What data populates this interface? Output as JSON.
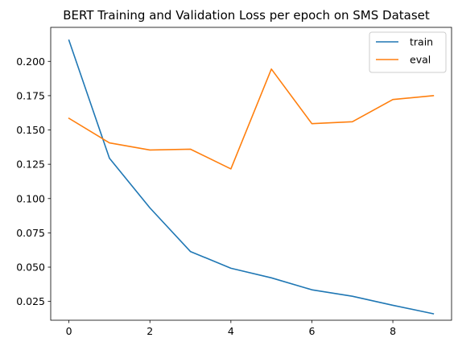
{
  "chart_data": {
    "type": "line",
    "title": "BERT Training and Validation Loss per epoch on SMS Dataset",
    "xlabel": "",
    "ylabel": "",
    "x": [
      0,
      1,
      2,
      3,
      4,
      5,
      6,
      7,
      8,
      9
    ],
    "xlim": [
      -0.45,
      9.45
    ],
    "ylim": [
      0.0113,
      0.2248
    ],
    "xticks": [
      0,
      2,
      4,
      6,
      8
    ],
    "xtick_labels": [
      "0",
      "2",
      "4",
      "6",
      "8"
    ],
    "yticks": [
      0.025,
      0.05,
      0.075,
      0.1,
      0.125,
      0.15,
      0.175,
      0.2
    ],
    "ytick_labels": [
      "0.025",
      "0.050",
      "0.075",
      "0.100",
      "0.125",
      "0.150",
      "0.175",
      "0.200"
    ],
    "grid": false,
    "legend_position": "top-right",
    "series": [
      {
        "name": "train",
        "color": "#1f77b4",
        "values": [
          0.2154,
          0.1294,
          0.0932,
          0.0614,
          0.0492,
          0.0422,
          0.0335,
          0.0288,
          0.0222,
          0.016
        ]
      },
      {
        "name": "eval",
        "color": "#ff7f0e",
        "values": [
          0.1585,
          0.1406,
          0.1354,
          0.136,
          0.1216,
          0.1944,
          0.1546,
          0.156,
          0.1722,
          0.175
        ]
      }
    ]
  }
}
